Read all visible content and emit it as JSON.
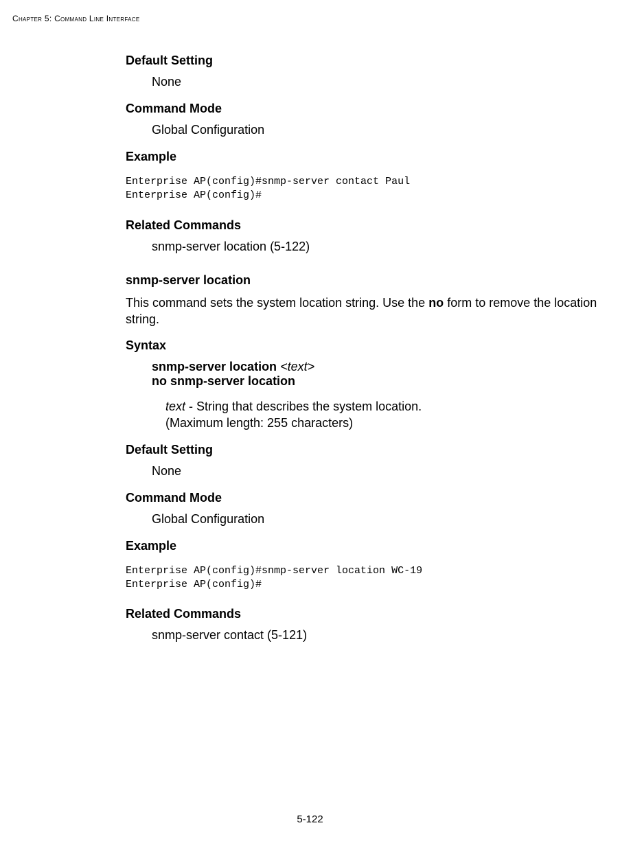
{
  "header": {
    "chapter_label": "Chapter 5: Command Line Interface"
  },
  "sections": {
    "default_setting_1": {
      "heading": "Default Setting",
      "value": "None"
    },
    "command_mode_1": {
      "heading": "Command Mode",
      "value": "Global Configuration"
    },
    "example_1": {
      "heading": "Example",
      "code": "Enterprise AP(config)#snmp-server contact Paul\nEnterprise AP(config)#"
    },
    "related_commands_1": {
      "heading": "Related Commands",
      "value": "snmp-server location (5-122)"
    },
    "cmd2": {
      "title": "snmp-server location",
      "desc_pre": "This command sets the system location string. Use the ",
      "desc_bold": "no",
      "desc_post": " form to remove the location string."
    },
    "syntax": {
      "heading": "Syntax",
      "line1_bold": "snmp-server location",
      "line1_italic": " <text>",
      "line2_bold": "no snmp-server location",
      "param_italic": "text",
      "param_rest": " - String that describes the system location.",
      "param_note": "(Maximum length: 255 characters)"
    },
    "default_setting_2": {
      "heading": "Default Setting",
      "value": "None"
    },
    "command_mode_2": {
      "heading": "Command Mode",
      "value": "Global Configuration"
    },
    "example_2": {
      "heading": "Example",
      "code": "Enterprise AP(config)#snmp-server location WC-19\nEnterprise AP(config)#"
    },
    "related_commands_2": {
      "heading": "Related Commands",
      "value": "snmp-server contact (5-121)"
    }
  },
  "footer": {
    "page_number": "5-122"
  }
}
